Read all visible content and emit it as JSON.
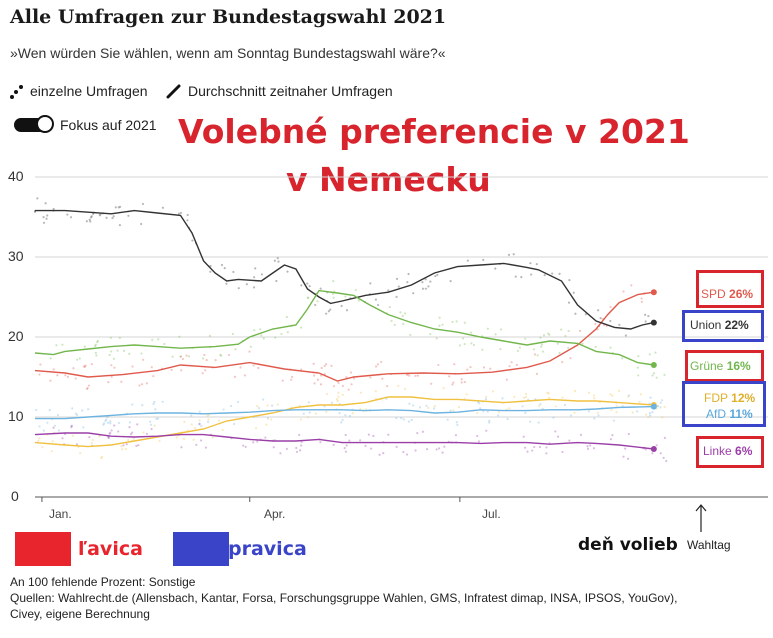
{
  "title": "Alle Umfragen zur Bundestagswahl 2021",
  "subtitle": "»Wen würden Sie wählen, wenn am Sonntag Bundestagswahl wäre?«",
  "legend": {
    "single_polls": "einzelne Umfragen",
    "average": "Durchschnitt zeitnaher Umfragen",
    "focus_toggle": "Fokus auf 2021"
  },
  "overlay": {
    "line1": "Volebné preferencie v 2021",
    "line2": "v Nemecku"
  },
  "color_legend": {
    "left_label": "ľavica",
    "right_label": "pravica",
    "left_color": "#e8242c",
    "right_color": "#3a44c8"
  },
  "election_day": {
    "label": "deň volieb",
    "waltag": "Wahltag"
  },
  "footer": {
    "line1": "An 100 fehlende Prozent: Sonstige",
    "line2": "Quellen: Wahlrecht.de (Allensbach, Kantar, Forsa, Forschungsgruppe Wahlen, GMS, Infratest dimap, INSA, IPSOS, YouGov),",
    "line3": "Civey, eigene Berechnung"
  },
  "chart_data": {
    "type": "line",
    "title": "Alle Umfragen zur Bundestagswahl 2021",
    "y_ticks": [
      0,
      10,
      20,
      30,
      40
    ],
    "x_ticks": [
      "Jan.",
      "Apr.",
      "Jul."
    ],
    "ylim": [
      0,
      40
    ],
    "x_unit": "day of 2021",
    "xlim": [
      -3,
      272
    ],
    "grid": true,
    "series": [
      {
        "name": "SPD",
        "value_label": "26%",
        "color": "#e05a4c",
        "x": [
          -3,
          10,
          20,
          35,
          50,
          60,
          75,
          90,
          105,
          120,
          128,
          135,
          150,
          165,
          180,
          195,
          210,
          220,
          232,
          240,
          245,
          250,
          258,
          265
        ],
        "y": [
          15.8,
          15.5,
          15,
          15.3,
          15.8,
          16.5,
          16.2,
          16.8,
          16,
          15.5,
          14.5,
          15,
          15.4,
          15.5,
          15.4,
          15.6,
          16.2,
          17,
          19,
          21,
          22.8,
          24.3,
          25.3,
          25.6
        ]
      },
      {
        "name": "Union",
        "value_label": "22%",
        "color": "#333333",
        "x": [
          -3,
          10,
          20,
          30,
          40,
          50,
          60,
          65,
          70,
          75,
          80,
          85,
          95,
          100,
          105,
          110,
          115,
          120,
          125,
          130,
          140,
          150,
          160,
          170,
          180,
          190,
          200,
          210,
          215,
          225,
          232,
          240,
          248,
          255,
          260,
          265
        ],
        "y": [
          35.8,
          35.8,
          35.6,
          35.4,
          35.8,
          35.5,
          35.2,
          33,
          29.5,
          28,
          27,
          27.2,
          27,
          28,
          29,
          28.5,
          26,
          25,
          24.2,
          24.5,
          25.2,
          25.6,
          26.5,
          28,
          28.8,
          29,
          29.2,
          28.7,
          28.4,
          27,
          24,
          22,
          21.2,
          21,
          21.5,
          21.8
        ]
      },
      {
        "name": "Grüne",
        "value_label": "16%",
        "color": "#72b64c",
        "x": [
          -3,
          5,
          10,
          20,
          30,
          40,
          50,
          60,
          75,
          85,
          90,
          100,
          110,
          115,
          120,
          128,
          135,
          142,
          150,
          160,
          170,
          180,
          190,
          200,
          210,
          220,
          232,
          240,
          250,
          258,
          265
        ],
        "y": [
          18,
          17.8,
          18.2,
          18.5,
          18.8,
          19,
          18.8,
          18.6,
          18.8,
          19.1,
          20,
          21,
          21.5,
          23.5,
          25.8,
          25.5,
          25.2,
          24,
          22.8,
          21.8,
          21,
          20.6,
          20,
          19.5,
          19,
          19.5,
          19.2,
          18.2,
          17.8,
          16.8,
          16.5
        ]
      },
      {
        "name": "FDP",
        "value_label": "12%",
        "color": "#f0c040",
        "x": [
          -3,
          10,
          20,
          30,
          40,
          50,
          60,
          70,
          80,
          90,
          100,
          110,
          120,
          130,
          140,
          150,
          160,
          170,
          180,
          190,
          200,
          210,
          220,
          232,
          240,
          250,
          265
        ],
        "y": [
          6.8,
          6.5,
          6.3,
          6.5,
          7,
          7.5,
          8,
          8.5,
          9.5,
          10,
          10.5,
          11.2,
          11.5,
          11.5,
          11.8,
          12.5,
          12.5,
          12.2,
          12.2,
          12,
          11.8,
          12,
          12.2,
          12,
          12,
          11.8,
          11.5
        ]
      },
      {
        "name": "AfD",
        "value_label": "11%",
        "color": "#6db3e0",
        "x": [
          -3,
          10,
          20,
          30,
          40,
          50,
          60,
          70,
          80,
          90,
          100,
          110,
          120,
          130,
          140,
          150,
          160,
          170,
          180,
          190,
          200,
          210,
          220,
          232,
          240,
          250,
          265
        ],
        "y": [
          9.8,
          9.8,
          10,
          10.2,
          10.4,
          10.5,
          10.5,
          10.4,
          10.5,
          10.6,
          10.8,
          10.9,
          10.9,
          10.9,
          10.8,
          10.9,
          10.8,
          10.5,
          10.6,
          10.9,
          10.8,
          10.8,
          10.9,
          10.9,
          11,
          11.2,
          11.3
        ]
      },
      {
        "name": "Linke",
        "value_label": "6%",
        "color": "#9b3fa8",
        "x": [
          -3,
          10,
          20,
          30,
          40,
          50,
          60,
          70,
          80,
          90,
          100,
          110,
          120,
          130,
          140,
          150,
          160,
          170,
          180,
          190,
          200,
          210,
          220,
          232,
          240,
          250,
          265
        ],
        "y": [
          7.8,
          8,
          8,
          7.6,
          7.5,
          7.6,
          7.8,
          7.8,
          7.5,
          7.2,
          7,
          7,
          7.2,
          6.8,
          6.8,
          6.8,
          6.8,
          6.8,
          6.8,
          6.7,
          6.8,
          6.8,
          6.6,
          6.8,
          6.7,
          6.5,
          6
        ]
      }
    ]
  }
}
